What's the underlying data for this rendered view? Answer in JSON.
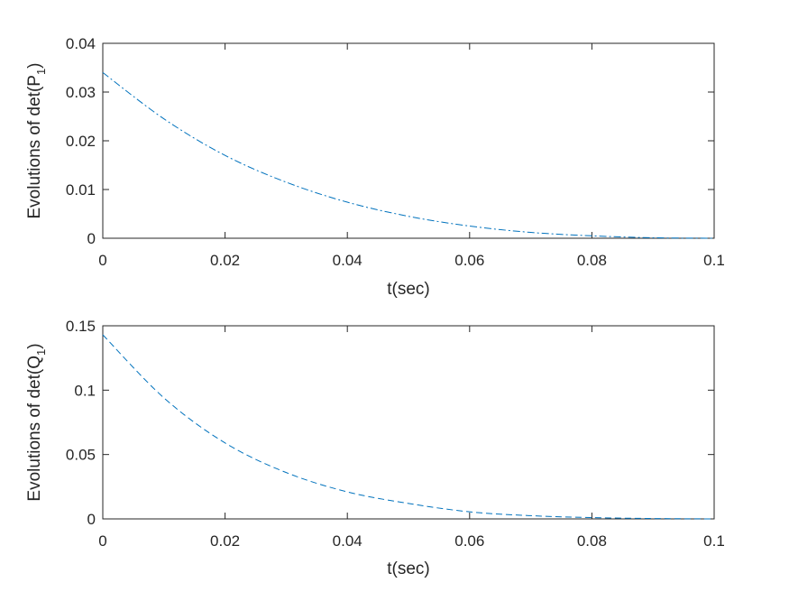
{
  "chart_data": [
    {
      "type": "line",
      "xlabel": "t(sec)",
      "ylabel": {
        "main": "Evolutions of det(P",
        "sub": "1",
        "end": ")"
      },
      "xlim": [
        0,
        0.1
      ],
      "ylim": [
        0,
        0.04
      ],
      "xticks": [
        0,
        0.02,
        0.04,
        0.06,
        0.08,
        0.1
      ],
      "xtick_labels": [
        "0",
        "0.02",
        "0.04",
        "0.06",
        "0.08",
        "0.1"
      ],
      "yticks": [
        0,
        0.01,
        0.02,
        0.03,
        0.04
      ],
      "ytick_labels": [
        "0",
        "0.01",
        "0.02",
        "0.03",
        "0.04"
      ],
      "grid": false,
      "line_style": "dash-dot",
      "color": "#0072BD",
      "x": [
        0,
        0.01,
        0.02,
        0.03,
        0.04,
        0.05,
        0.06,
        0.07,
        0.08,
        0.09,
        0.1
      ],
      "y": [
        0.034,
        0.0245,
        0.017,
        0.0115,
        0.0074,
        0.0045,
        0.0025,
        0.0012,
        0.0005,
        0.0001,
        0.0
      ]
    },
    {
      "type": "line",
      "xlabel": "t(sec)",
      "ylabel": {
        "main": "Evolutions of det(Q",
        "sub": "1",
        "end": ")"
      },
      "xlim": [
        0,
        0.1
      ],
      "ylim": [
        0,
        0.15
      ],
      "xticks": [
        0,
        0.02,
        0.04,
        0.06,
        0.08,
        0.1
      ],
      "xtick_labels": [
        "0",
        "0.02",
        "0.04",
        "0.06",
        "0.08",
        "0.1"
      ],
      "yticks": [
        0,
        0.05,
        0.1,
        0.15
      ],
      "ytick_labels": [
        "0",
        "0.05",
        "0.1",
        "0.15"
      ],
      "grid": false,
      "line_style": "dashed",
      "color": "#0072BD",
      "x": [
        0,
        0.01,
        0.02,
        0.03,
        0.04,
        0.05,
        0.06,
        0.07,
        0.08,
        0.09,
        0.1
      ],
      "y": [
        0.143,
        0.094,
        0.059,
        0.036,
        0.021,
        0.012,
        0.0055,
        0.0025,
        0.001,
        0.0003,
        0.0
      ]
    }
  ]
}
